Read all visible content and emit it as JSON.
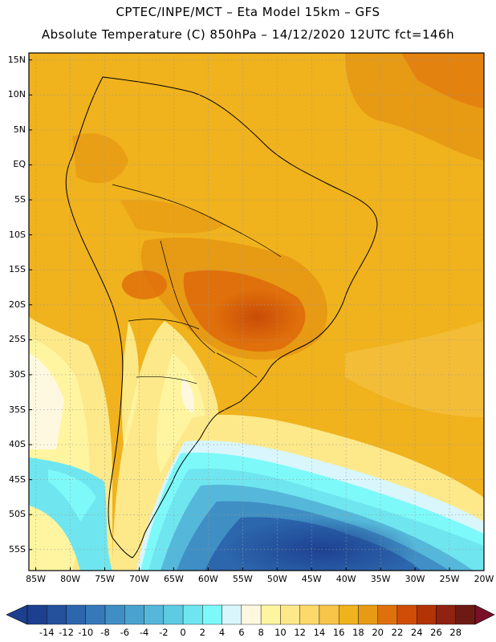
{
  "header": {
    "line1": "CPTEC/INPE/MCT  –   Eta Model 15km  –  GFS",
    "line2": "Absolute Temperature (C) 850hPa – 14/12/2020 12UTC fct=146h"
  },
  "map": {
    "lat_range": [
      -58,
      16
    ],
    "lon_range": [
      -86,
      -20
    ],
    "lat_ticks": [
      {
        "v": 15,
        "label": "15N"
      },
      {
        "v": 10,
        "label": "10N"
      },
      {
        "v": 5,
        "label": "5N"
      },
      {
        "v": 0,
        "label": "EQ"
      },
      {
        "v": -5,
        "label": "5S"
      },
      {
        "v": -10,
        "label": "10S"
      },
      {
        "v": -15,
        "label": "15S"
      },
      {
        "v": -20,
        "label": "20S"
      },
      {
        "v": -25,
        "label": "25S"
      },
      {
        "v": -30,
        "label": "30S"
      },
      {
        "v": -35,
        "label": "35S"
      },
      {
        "v": -40,
        "label": "40S"
      },
      {
        "v": -45,
        "label": "45S"
      },
      {
        "v": -50,
        "label": "50S"
      },
      {
        "v": -55,
        "label": "55S"
      }
    ],
    "lon_ticks": [
      {
        "v": -85,
        "label": "85W"
      },
      {
        "v": -80,
        "label": "80W"
      },
      {
        "v": -75,
        "label": "75W"
      },
      {
        "v": -70,
        "label": "70W"
      },
      {
        "v": -65,
        "label": "65W"
      },
      {
        "v": -60,
        "label": "60W"
      },
      {
        "v": -55,
        "label": "55W"
      },
      {
        "v": -50,
        "label": "50W"
      },
      {
        "v": -45,
        "label": "45W"
      },
      {
        "v": -40,
        "label": "40W"
      },
      {
        "v": -35,
        "label": "35W"
      },
      {
        "v": -30,
        "label": "30W"
      },
      {
        "v": -25,
        "label": "25W"
      },
      {
        "v": -20,
        "label": "20W"
      }
    ]
  },
  "colorbar": {
    "levels": [
      "-14",
      "-12",
      "-10",
      "-8",
      "-6",
      "-4",
      "-2",
      "0",
      "2",
      "4",
      "6",
      "8",
      "10",
      "12",
      "14",
      "16",
      "18",
      "20",
      "22",
      "24",
      "26",
      "28"
    ],
    "colors": [
      "#1d3f8f",
      "#24509c",
      "#2c66ad",
      "#3579b9",
      "#3f8fc4",
      "#4aa3cf",
      "#55b8da",
      "#5fcbe3",
      "#6fe6ef",
      "#7ef9f9",
      "#d8f6fb",
      "#fff8e1",
      "#fff5a0",
      "#fde98a",
      "#fbd96a",
      "#f6c54a",
      "#f0b21d",
      "#e79a14",
      "#e0700b",
      "#cf4d06",
      "#b13306",
      "#8f2211",
      "#6e1a14"
    ]
  },
  "colors": {
    "background": "#ffffff",
    "frame": "#000000",
    "grid": "#9a9a9a",
    "coast": "#000000"
  }
}
